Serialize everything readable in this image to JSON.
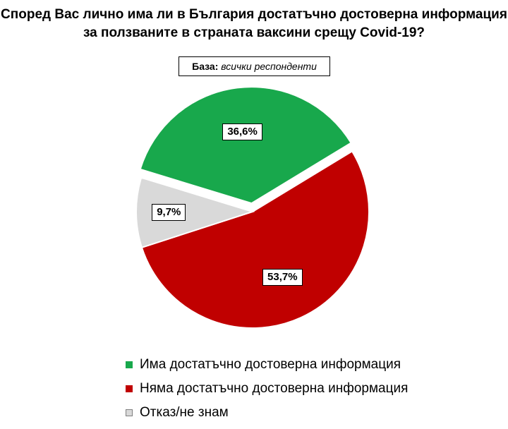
{
  "chart_data": {
    "type": "pie",
    "title_lines": [
      "Според Вас лично има ли в България достатъчно достоверна информация",
      "за ползваните в страната ваксини срещу Covid-19?"
    ],
    "base_label": "База:",
    "base_value": "всички респонденти",
    "slices": [
      {
        "label": "Има достатъчно достоверна информация",
        "value": 36.6,
        "display": "36,6%",
        "color": "#18A84C",
        "exploded": true
      },
      {
        "label": "Няма достатъчно достоверна информация",
        "value": 53.7,
        "display": "53,7%",
        "color": "#C00000",
        "exploded": false
      },
      {
        "label": "Отказ/не знам",
        "value": 9.7,
        "display": "9,7%",
        "color": "#D9D9D9",
        "exploded": false
      }
    ],
    "legend_position": "bottom"
  }
}
